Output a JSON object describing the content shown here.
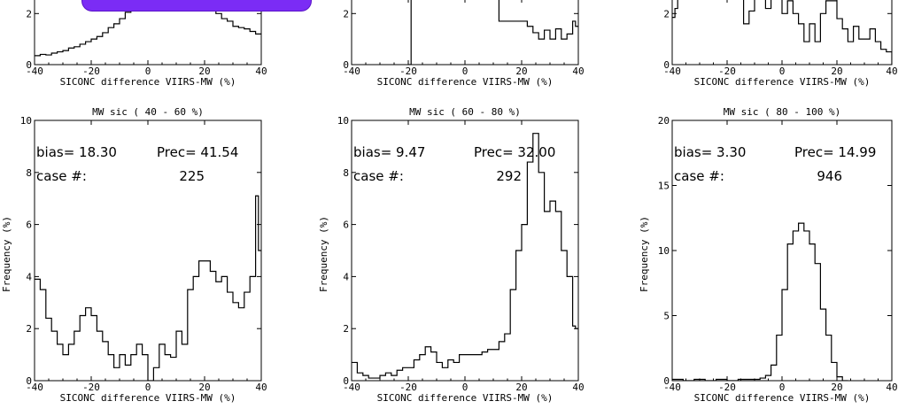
{
  "colors": {
    "axis": "#000000",
    "series": "#000000",
    "overlay": "#7b2cf5"
  },
  "chart_data": [
    {
      "type": "step",
      "row": "top",
      "xlabel": "SICONC difference VIIRS-MW (%)",
      "xlim": [
        -40,
        40
      ],
      "ylim": [
        0,
        2.6
      ],
      "xticks": [
        -40,
        -20,
        0,
        20,
        40
      ],
      "yticks": [
        0,
        2
      ],
      "values": [
        [
          -40,
          0.35
        ],
        [
          -38,
          0.4
        ],
        [
          -36,
          0.38
        ],
        [
          -34,
          0.45
        ],
        [
          -32,
          0.5
        ],
        [
          -30,
          0.55
        ],
        [
          -28,
          0.65
        ],
        [
          -26,
          0.7
        ],
        [
          -24,
          0.8
        ],
        [
          -22,
          0.9
        ],
        [
          -20,
          1.0
        ],
        [
          -18,
          1.1
        ],
        [
          -16,
          1.25
        ],
        [
          -14,
          1.45
        ],
        [
          -12,
          1.6
        ],
        [
          -10,
          1.8
        ],
        [
          -8,
          2.05
        ],
        [
          -6,
          2.4
        ],
        [
          -4,
          2.6
        ],
        [
          0,
          2.6
        ],
        [
          16,
          2.6
        ],
        [
          18,
          2.5
        ],
        [
          20,
          2.3
        ],
        [
          22,
          2.1
        ],
        [
          24,
          2.0
        ],
        [
          26,
          1.8
        ],
        [
          28,
          1.7
        ],
        [
          30,
          1.5
        ],
        [
          32,
          1.45
        ],
        [
          34,
          1.4
        ],
        [
          36,
          1.3
        ],
        [
          38,
          1.2
        ]
      ]
    },
    {
      "type": "step",
      "row": "top",
      "xlabel": "SICONC difference VIIRS-MW (%)",
      "xlim": [
        -40,
        40
      ],
      "ylim": [
        0,
        2.6
      ],
      "xticks": [
        -40,
        -20,
        0,
        20,
        40
      ],
      "yticks": [
        0,
        2
      ],
      "values": [
        [
          -20,
          0.0
        ],
        [
          -19,
          2.6
        ],
        [
          -18,
          2.6
        ],
        [
          10,
          2.6
        ],
        [
          12,
          1.7
        ],
        [
          20,
          1.7
        ],
        [
          22,
          1.5
        ],
        [
          24,
          1.25
        ],
        [
          26,
          1.0
        ],
        [
          28,
          1.35
        ],
        [
          30,
          1.0
        ],
        [
          32,
          1.4
        ],
        [
          34,
          1.0
        ],
        [
          36,
          1.2
        ],
        [
          38,
          1.7
        ],
        [
          39,
          1.5
        ]
      ]
    },
    {
      "type": "step",
      "row": "top",
      "xlabel": "SICONC difference VIIRS-MW (%)",
      "xlim": [
        -40,
        40
      ],
      "ylim": [
        0,
        2.6
      ],
      "xticks": [
        -40,
        -20,
        0,
        20,
        40
      ],
      "yticks": [
        0,
        2
      ],
      "values": [
        [
          -40,
          1.85
        ],
        [
          -39,
          2.2
        ],
        [
          -38,
          2.6
        ],
        [
          -16,
          2.6
        ],
        [
          -14,
          1.6
        ],
        [
          -12,
          2.1
        ],
        [
          -10,
          2.6
        ],
        [
          -6,
          2.2
        ],
        [
          -4,
          2.6
        ],
        [
          0,
          2.0
        ],
        [
          2,
          2.5
        ],
        [
          4,
          2.0
        ],
        [
          6,
          1.6
        ],
        [
          8,
          0.9
        ],
        [
          10,
          1.6
        ],
        [
          12,
          0.9
        ],
        [
          14,
          2.0
        ],
        [
          16,
          2.5
        ],
        [
          20,
          1.8
        ],
        [
          22,
          1.4
        ],
        [
          24,
          0.9
        ],
        [
          26,
          1.5
        ],
        [
          28,
          1.0
        ],
        [
          32,
          1.4
        ],
        [
          34,
          0.9
        ],
        [
          36,
          0.6
        ],
        [
          38,
          0.5
        ],
        [
          40,
          0.0
        ]
      ]
    },
    {
      "type": "step",
      "row": "bottom",
      "title": "MW sic ( 40 -  60 %)",
      "ylabel": "Frequency (%)",
      "xlabel": "SICONC difference VIIRS-MW (%)",
      "xlim": [
        -40,
        40
      ],
      "ylim": [
        0,
        10
      ],
      "xticks": [
        -40,
        -20,
        0,
        20,
        40
      ],
      "yticks": [
        0,
        2,
        4,
        6,
        8,
        10
      ],
      "stats_bias": "bias=  18.30",
      "stats_prec": "Prec=  41.54",
      "stats_case_label": "case #:",
      "stats_case_value": "225",
      "values": [
        [
          -40,
          3.9
        ],
        [
          -38,
          3.5
        ],
        [
          -36,
          2.4
        ],
        [
          -34,
          1.9
        ],
        [
          -32,
          1.4
        ],
        [
          -30,
          1.0
        ],
        [
          -28,
          1.4
        ],
        [
          -26,
          1.9
        ],
        [
          -24,
          2.5
        ],
        [
          -22,
          2.8
        ],
        [
          -20,
          2.5
        ],
        [
          -18,
          1.9
        ],
        [
          -16,
          1.5
        ],
        [
          -14,
          1.0
        ],
        [
          -12,
          0.5
        ],
        [
          -10,
          1.0
        ],
        [
          -8,
          0.6
        ],
        [
          -6,
          1.0
        ],
        [
          -4,
          1.4
        ],
        [
          -2,
          1.0
        ],
        [
          0,
          0.0
        ],
        [
          2,
          0.5
        ],
        [
          4,
          1.4
        ],
        [
          6,
          1.0
        ],
        [
          8,
          0.9
        ],
        [
          10,
          1.9
        ],
        [
          12,
          1.4
        ],
        [
          14,
          3.5
        ],
        [
          16,
          4.0
        ],
        [
          18,
          4.6
        ],
        [
          20,
          4.6
        ],
        [
          22,
          4.2
        ],
        [
          24,
          3.8
        ],
        [
          26,
          4.0
        ],
        [
          28,
          3.4
        ],
        [
          30,
          3.0
        ],
        [
          32,
          2.8
        ],
        [
          34,
          3.4
        ],
        [
          36,
          4.0
        ],
        [
          38,
          7.1
        ],
        [
          39,
          5.0
        ]
      ]
    },
    {
      "type": "step",
      "row": "bottom",
      "title": "MW sic ( 60 -  80 %)",
      "ylabel": "Frequency (%)",
      "xlabel": "SICONC difference VIIRS-MW (%)",
      "xlim": [
        -40,
        40
      ],
      "ylim": [
        0,
        10
      ],
      "xticks": [
        -40,
        -20,
        0,
        20,
        40
      ],
      "yticks": [
        0,
        2,
        4,
        6,
        8,
        10
      ],
      "stats_bias": "bias=   9.47",
      "stats_prec": "Prec=  32.00",
      "stats_case_label": "case #:",
      "stats_case_value": "292",
      "values": [
        [
          -40,
          0.7
        ],
        [
          -38,
          0.3
        ],
        [
          -36,
          0.2
        ],
        [
          -34,
          0.1
        ],
        [
          -32,
          0.1
        ],
        [
          -30,
          0.2
        ],
        [
          -28,
          0.3
        ],
        [
          -26,
          0.2
        ],
        [
          -24,
          0.4
        ],
        [
          -22,
          0.5
        ],
        [
          -20,
          0.5
        ],
        [
          -18,
          0.8
        ],
        [
          -16,
          1.0
        ],
        [
          -14,
          1.3
        ],
        [
          -12,
          1.1
        ],
        [
          -10,
          0.7
        ],
        [
          -8,
          0.5
        ],
        [
          -6,
          0.8
        ],
        [
          -4,
          0.7
        ],
        [
          -2,
          1.0
        ],
        [
          0,
          1.0
        ],
        [
          4,
          1.0
        ],
        [
          6,
          1.1
        ],
        [
          8,
          1.2
        ],
        [
          10,
          1.2
        ],
        [
          12,
          1.5
        ],
        [
          14,
          1.8
        ],
        [
          16,
          3.5
        ],
        [
          18,
          5.0
        ],
        [
          20,
          6.0
        ],
        [
          22,
          8.4
        ],
        [
          24,
          9.5
        ],
        [
          26,
          8.0
        ],
        [
          28,
          6.5
        ],
        [
          30,
          6.9
        ],
        [
          32,
          6.5
        ],
        [
          34,
          5.0
        ],
        [
          36,
          4.0
        ],
        [
          38,
          2.1
        ],
        [
          39,
          2.0
        ]
      ]
    },
    {
      "type": "step",
      "row": "bottom",
      "title": "MW sic ( 80 - 100 %)",
      "ylabel": "Frequency (%)",
      "xlabel": "SICONC difference VIIRS-MW (%)",
      "xlim": [
        -40,
        40
      ],
      "ylim": [
        0,
        20
      ],
      "xticks": [
        -40,
        -20,
        0,
        20,
        40
      ],
      "yticks": [
        0,
        5,
        10,
        15,
        20
      ],
      "stats_bias": "bias=   3.30",
      "stats_prec": "Prec=  14.99",
      "stats_case_label": "case #:",
      "stats_case_value": "946",
      "values": [
        [
          -40,
          0.1
        ],
        [
          -36,
          0.0
        ],
        [
          -32,
          0.1
        ],
        [
          -28,
          0.0
        ],
        [
          -24,
          0.1
        ],
        [
          -20,
          0.0
        ],
        [
          -16,
          0.1
        ],
        [
          -12,
          0.1
        ],
        [
          -8,
          0.2
        ],
        [
          -6,
          0.4
        ],
        [
          -4,
          1.2
        ],
        [
          -2,
          3.5
        ],
        [
          0,
          7.0
        ],
        [
          2,
          10.5
        ],
        [
          4,
          11.5
        ],
        [
          6,
          12.1
        ],
        [
          8,
          11.5
        ],
        [
          10,
          10.5
        ],
        [
          12,
          9.0
        ],
        [
          14,
          5.5
        ],
        [
          16,
          3.5
        ],
        [
          18,
          1.4
        ],
        [
          20,
          0.3
        ],
        [
          22,
          0.0
        ]
      ]
    }
  ]
}
